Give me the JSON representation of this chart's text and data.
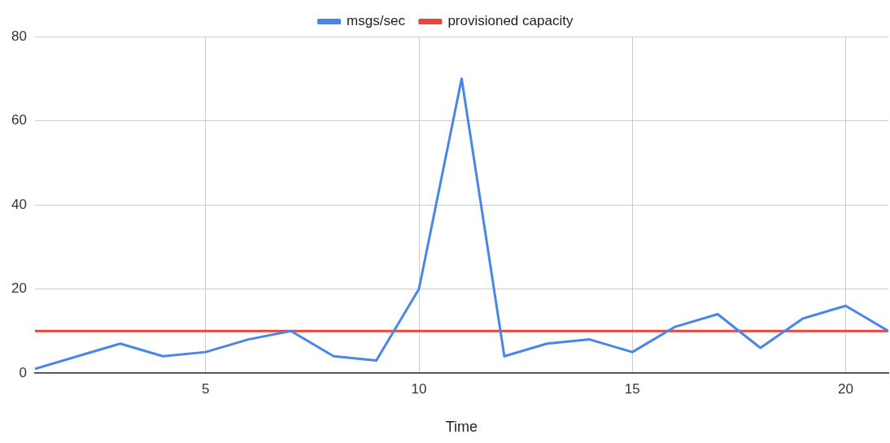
{
  "chart_data": {
    "type": "line",
    "xlabel": "Time",
    "x": [
      1,
      2,
      3,
      4,
      5,
      6,
      7,
      8,
      9,
      10,
      11,
      12,
      13,
      14,
      15,
      16,
      17,
      18,
      19,
      20,
      21
    ],
    "series": [
      {
        "name": "msgs/sec",
        "color": "#4a86e8",
        "values": [
          1,
          4,
          7,
          4,
          5,
          8,
          10,
          4,
          3,
          20,
          70,
          4,
          7,
          8,
          5,
          11,
          14,
          6,
          13,
          16,
          10
        ]
      },
      {
        "name": "provisioned capacity",
        "color": "#e8453c",
        "values": [
          10,
          10,
          10,
          10,
          10,
          10,
          10,
          10,
          10,
          10,
          10,
          10,
          10,
          10,
          10,
          10,
          10,
          10,
          10,
          10,
          10
        ]
      }
    ],
    "xlim": [
      1,
      21
    ],
    "xticks": [
      5,
      10,
      15,
      20
    ],
    "ylim": [
      0,
      80
    ],
    "yticks": [
      0,
      20,
      40,
      60,
      80
    ],
    "grid": true,
    "legend": "top",
    "marker": "none",
    "line_style": "solid"
  }
}
